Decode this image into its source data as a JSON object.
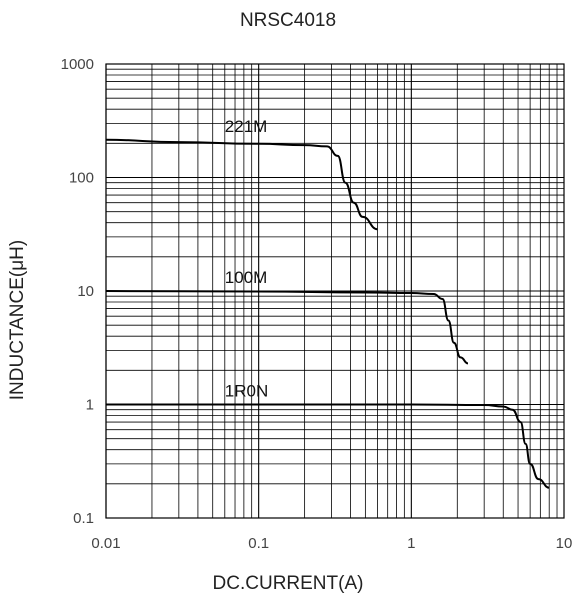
{
  "chart_data": {
    "type": "line",
    "title": "NRSC4018",
    "xlabel": "DC.CURRENT(A)",
    "ylabel": "INDUCTANCE(μH)",
    "xscale": "log",
    "yscale": "log",
    "xlim": [
      0.01,
      10
    ],
    "ylim": [
      0.1,
      1000
    ],
    "grid": true,
    "x_ticks": [
      "0.01",
      "0.1",
      "1",
      "10"
    ],
    "y_ticks": [
      "0.1",
      "1",
      "10",
      "100",
      "1000"
    ],
    "series": [
      {
        "name": "221M",
        "points": [
          [
            0.01,
            215
          ],
          [
            0.03,
            205
          ],
          [
            0.1,
            198
          ],
          [
            0.2,
            193
          ],
          [
            0.28,
            188
          ],
          [
            0.33,
            155
          ],
          [
            0.37,
            90
          ],
          [
            0.42,
            60
          ],
          [
            0.48,
            45
          ],
          [
            0.6,
            35
          ]
        ]
      },
      {
        "name": "100M",
        "points": [
          [
            0.01,
            10
          ],
          [
            0.1,
            9.9
          ],
          [
            0.5,
            9.7
          ],
          [
            1.0,
            9.6
          ],
          [
            1.4,
            9.4
          ],
          [
            1.6,
            8.5
          ],
          [
            1.75,
            5.5
          ],
          [
            1.9,
            3.5
          ],
          [
            2.1,
            2.6
          ],
          [
            2.35,
            2.3
          ]
        ]
      },
      {
        "name": "1R0N",
        "points": [
          [
            0.01,
            1.0
          ],
          [
            0.1,
            1.0
          ],
          [
            1.0,
            1.0
          ],
          [
            3.0,
            0.99
          ],
          [
            4.0,
            0.96
          ],
          [
            4.6,
            0.9
          ],
          [
            5.2,
            0.7
          ],
          [
            5.6,
            0.45
          ],
          [
            6.0,
            0.3
          ],
          [
            6.8,
            0.22
          ],
          [
            8.0,
            0.185
          ]
        ]
      }
    ]
  }
}
